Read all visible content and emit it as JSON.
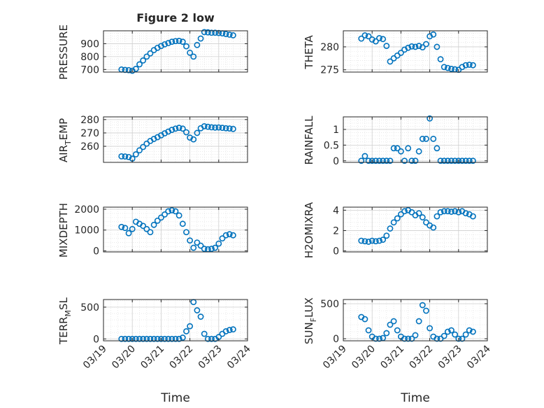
{
  "figure": {
    "title": "Figure 2 low",
    "xlabel": "Time",
    "date_ticks": [
      "03/19",
      "03/20",
      "03/21",
      "03/22",
      "03/23",
      "03/24"
    ],
    "marker_color": "#0072bd",
    "axis_color": "#262626",
    "grid_color": "#dcdcdc"
  },
  "chart_data": [
    {
      "type": "scatter",
      "ylabel": "PRESSURE",
      "ylim": [
        680,
        1000
      ],
      "yticks": [
        700,
        800,
        900
      ],
      "xlim": [
        "2000-03-19",
        "2000-03-24"
      ],
      "x": [
        "03-19 15:00",
        "03-19 18:00",
        "03-19 21:00",
        "03-20 00:00",
        "03-20 03:00",
        "03-20 06:00",
        "03-20 09:00",
        "03-20 12:00",
        "03-20 15:00",
        "03-20 18:00",
        "03-20 21:00",
        "03-21 00:00",
        "03-21 03:00",
        "03-21 06:00",
        "03-21 09:00",
        "03-21 12:00",
        "03-21 15:00",
        "03-21 18:00",
        "03-21 21:00",
        "03-22 00:00",
        "03-22 03:00",
        "03-22 06:00",
        "03-22 09:00",
        "03-22 12:00",
        "03-22 15:00",
        "03-22 18:00",
        "03-22 21:00",
        "03-23 00:00",
        "03-23 03:00",
        "03-23 06:00",
        "03-23 09:00",
        "03-23 12:00"
      ],
      "values": [
        700,
        697,
        695,
        690,
        705,
        740,
        770,
        800,
        825,
        850,
        868,
        882,
        895,
        905,
        915,
        920,
        922,
        915,
        880,
        830,
        800,
        890,
        940,
        990,
        988,
        985,
        985,
        983,
        980,
        975,
        970,
        965
      ]
    },
    {
      "type": "scatter",
      "ylabel": "THETA",
      "ylim": [
        274.5,
        283.5
      ],
      "yticks": [
        275,
        280
      ],
      "xlim": [
        "2000-03-19",
        "2000-03-24"
      ],
      "x": [
        "03-19 15:00",
        "03-19 18:00",
        "03-19 21:00",
        "03-20 00:00",
        "03-20 03:00",
        "03-20 06:00",
        "03-20 09:00",
        "03-20 12:00",
        "03-20 15:00",
        "03-20 18:00",
        "03-20 21:00",
        "03-21 00:00",
        "03-21 03:00",
        "03-21 06:00",
        "03-21 09:00",
        "03-21 12:00",
        "03-21 15:00",
        "03-21 18:00",
        "03-21 21:00",
        "03-22 00:00",
        "03-22 03:00",
        "03-22 06:00",
        "03-22 09:00",
        "03-22 12:00",
        "03-22 15:00",
        "03-22 18:00",
        "03-22 21:00",
        "03-23 00:00",
        "03-23 03:00",
        "03-23 06:00",
        "03-23 09:00",
        "03-23 12:00"
      ],
      "values": [
        281.8,
        282.5,
        282.3,
        281.6,
        281.2,
        281.9,
        281.7,
        280.2,
        276.8,
        277.5,
        278.1,
        278.7,
        279.4,
        279.8,
        280.1,
        280.0,
        280.2,
        279.9,
        280.6,
        282.3,
        282.7,
        280.0,
        277.3,
        275.6,
        275.4,
        275.2,
        275.1,
        275.0,
        275.6,
        276.0,
        276.1,
        276.0
      ]
    },
    {
      "type": "scatter",
      "ylabel": "AIR_TEMP",
      "ylim": [
        248,
        282
      ],
      "yticks": [
        260,
        270,
        280
      ],
      "xlim": [
        "2000-03-19",
        "2000-03-24"
      ],
      "x": [
        "03-19 15:00",
        "03-19 18:00",
        "03-19 21:00",
        "03-20 00:00",
        "03-20 03:00",
        "03-20 06:00",
        "03-20 09:00",
        "03-20 12:00",
        "03-20 15:00",
        "03-20 18:00",
        "03-20 21:00",
        "03-21 00:00",
        "03-21 03:00",
        "03-21 06:00",
        "03-21 09:00",
        "03-21 12:00",
        "03-21 15:00",
        "03-21 18:00",
        "03-21 21:00",
        "03-22 00:00",
        "03-22 03:00",
        "03-22 06:00",
        "03-22 09:00",
        "03-22 12:00",
        "03-22 15:00",
        "03-22 18:00",
        "03-22 21:00",
        "03-23 00:00",
        "03-23 03:00",
        "03-23 06:00",
        "03-23 09:00",
        "03-23 12:00"
      ],
      "values": [
        252.5,
        252.4,
        252.0,
        250.8,
        254.0,
        257.0,
        259.5,
        262.0,
        264.0,
        265.5,
        266.8,
        268.2,
        269.7,
        271.0,
        272.3,
        273.2,
        273.8,
        273.2,
        270.5,
        266.5,
        265.2,
        270.0,
        273.5,
        275.0,
        274.6,
        274.2,
        274.0,
        274.1,
        273.8,
        273.5,
        273.3,
        273.0
      ]
    },
    {
      "type": "scatter",
      "ylabel": "RAINFALL",
      "ylim": [
        -0.05,
        1.4
      ],
      "yticks": [
        0,
        0.5,
        1
      ],
      "xlim": [
        "2000-03-19",
        "2000-03-24"
      ],
      "x": [
        "03-19 15:00",
        "03-19 18:00",
        "03-19 21:00",
        "03-20 00:00",
        "03-20 03:00",
        "03-20 06:00",
        "03-20 09:00",
        "03-20 12:00",
        "03-20 15:00",
        "03-20 18:00",
        "03-20 21:00",
        "03-21 00:00",
        "03-21 03:00",
        "03-21 06:00",
        "03-21 09:00",
        "03-21 12:00",
        "03-21 15:00",
        "03-21 18:00",
        "03-21 21:00",
        "03-22 00:00",
        "03-22 03:00",
        "03-22 06:00",
        "03-22 09:00",
        "03-22 12:00",
        "03-22 15:00",
        "03-22 18:00",
        "03-22 21:00",
        "03-23 00:00",
        "03-23 03:00",
        "03-23 06:00",
        "03-23 09:00",
        "03-23 12:00"
      ],
      "values": [
        0,
        0.15,
        0,
        0,
        0,
        0,
        0,
        0,
        0,
        0.4,
        0.4,
        0.3,
        0,
        0.4,
        0,
        0,
        0.3,
        0.7,
        0.7,
        1.35,
        0.7,
        0.4,
        0,
        0,
        0,
        0,
        0,
        0,
        0,
        0,
        0,
        0
      ]
    },
    {
      "type": "scatter",
      "ylabel": "MIXDEPTH",
      "ylim": [
        -50,
        2100
      ],
      "yticks": [
        0,
        1000,
        2000
      ],
      "xlim": [
        "2000-03-19",
        "2000-03-24"
      ],
      "x": [
        "03-19 15:00",
        "03-19 18:00",
        "03-19 21:00",
        "03-20 00:00",
        "03-20 03:00",
        "03-20 06:00",
        "03-20 09:00",
        "03-20 12:00",
        "03-20 15:00",
        "03-20 18:00",
        "03-20 21:00",
        "03-21 00:00",
        "03-21 03:00",
        "03-21 06:00",
        "03-21 09:00",
        "03-21 12:00",
        "03-21 15:00",
        "03-21 18:00",
        "03-21 21:00",
        "03-22 00:00",
        "03-22 03:00",
        "03-22 06:00",
        "03-22 09:00",
        "03-22 12:00",
        "03-22 15:00",
        "03-22 18:00",
        "03-22 21:00",
        "03-23 00:00",
        "03-23 03:00",
        "03-23 06:00",
        "03-23 09:00",
        "03-23 12:00"
      ],
      "values": [
        1150,
        1100,
        850,
        1050,
        1400,
        1300,
        1200,
        1050,
        900,
        1250,
        1450,
        1600,
        1750,
        1900,
        1950,
        1900,
        1700,
        1300,
        900,
        500,
        150,
        400,
        250,
        100,
        80,
        100,
        150,
        350,
        600,
        750,
        800,
        750
      ]
    },
    {
      "type": "scatter",
      "ylabel": "H2OMIXRA",
      "ylim": [
        -0.1,
        4.3
      ],
      "yticks": [
        0,
        2,
        4
      ],
      "xlim": [
        "2000-03-19",
        "2000-03-24"
      ],
      "x": [
        "03-19 15:00",
        "03-19 18:00",
        "03-19 21:00",
        "03-20 00:00",
        "03-20 03:00",
        "03-20 06:00",
        "03-20 09:00",
        "03-20 12:00",
        "03-20 15:00",
        "03-20 18:00",
        "03-20 21:00",
        "03-21 00:00",
        "03-21 03:00",
        "03-21 06:00",
        "03-21 09:00",
        "03-21 12:00",
        "03-21 15:00",
        "03-21 18:00",
        "03-21 21:00",
        "03-22 00:00",
        "03-22 03:00",
        "03-22 06:00",
        "03-22 09:00",
        "03-22 12:00",
        "03-22 15:00",
        "03-22 18:00",
        "03-22 21:00",
        "03-23 00:00",
        "03-23 03:00",
        "03-23 06:00",
        "03-23 09:00",
        "03-23 12:00"
      ],
      "values": [
        1.0,
        0.95,
        0.9,
        1.0,
        0.95,
        1.0,
        1.1,
        1.5,
        2.2,
        2.8,
        3.2,
        3.6,
        3.9,
        4.0,
        3.8,
        3.5,
        3.7,
        3.3,
        2.8,
        2.5,
        2.3,
        3.4,
        3.8,
        3.9,
        3.9,
        3.85,
        3.9,
        3.8,
        3.9,
        3.7,
        3.6,
        3.4
      ]
    },
    {
      "type": "scatter",
      "ylabel": "TERR_MSL",
      "ylim": [
        -30,
        620
      ],
      "yticks": [
        0,
        500
      ],
      "xlim": [
        "2000-03-19",
        "2000-03-24"
      ],
      "x": [
        "03-19 15:00",
        "03-19 18:00",
        "03-19 21:00",
        "03-20 00:00",
        "03-20 03:00",
        "03-20 06:00",
        "03-20 09:00",
        "03-20 12:00",
        "03-20 15:00",
        "03-20 18:00",
        "03-20 21:00",
        "03-21 00:00",
        "03-21 03:00",
        "03-21 06:00",
        "03-21 09:00",
        "03-21 12:00",
        "03-21 15:00",
        "03-21 18:00",
        "03-21 21:00",
        "03-22 00:00",
        "03-22 03:00",
        "03-22 06:00",
        "03-22 09:00",
        "03-22 12:00",
        "03-22 15:00",
        "03-22 18:00",
        "03-22 21:00",
        "03-23 00:00",
        "03-23 03:00",
        "03-23 06:00",
        "03-23 09:00",
        "03-23 12:00"
      ],
      "values": [
        0,
        0,
        0,
        0,
        0,
        0,
        0,
        0,
        0,
        0,
        0,
        0,
        0,
        0,
        0,
        0,
        0,
        20,
        120,
        200,
        580,
        450,
        350,
        80,
        0,
        0,
        0,
        30,
        80,
        120,
        140,
        150
      ]
    },
    {
      "type": "scatter",
      "ylabel": "SUN_FLUX",
      "ylim": [
        -30,
        560
      ],
      "yticks": [
        0,
        500
      ],
      "xlim": [
        "2000-03-19",
        "2000-03-24"
      ],
      "x": [
        "03-19 15:00",
        "03-19 18:00",
        "03-19 21:00",
        "03-20 00:00",
        "03-20 03:00",
        "03-20 06:00",
        "03-20 09:00",
        "03-20 12:00",
        "03-20 15:00",
        "03-20 18:00",
        "03-20 21:00",
        "03-21 00:00",
        "03-21 03:00",
        "03-21 06:00",
        "03-21 09:00",
        "03-21 12:00",
        "03-21 15:00",
        "03-21 18:00",
        "03-21 21:00",
        "03-22 00:00",
        "03-22 03:00",
        "03-22 06:00",
        "03-22 09:00",
        "03-22 12:00",
        "03-22 15:00",
        "03-22 18:00",
        "03-22 21:00",
        "03-23 00:00",
        "03-23 03:00",
        "03-23 06:00",
        "03-23 09:00",
        "03-23 12:00"
      ],
      "values": [
        310,
        280,
        120,
        30,
        0,
        0,
        10,
        80,
        200,
        250,
        120,
        30,
        0,
        0,
        0,
        50,
        250,
        480,
        400,
        150,
        30,
        0,
        0,
        40,
        100,
        120,
        60,
        0,
        0,
        60,
        120,
        100
      ]
    }
  ]
}
